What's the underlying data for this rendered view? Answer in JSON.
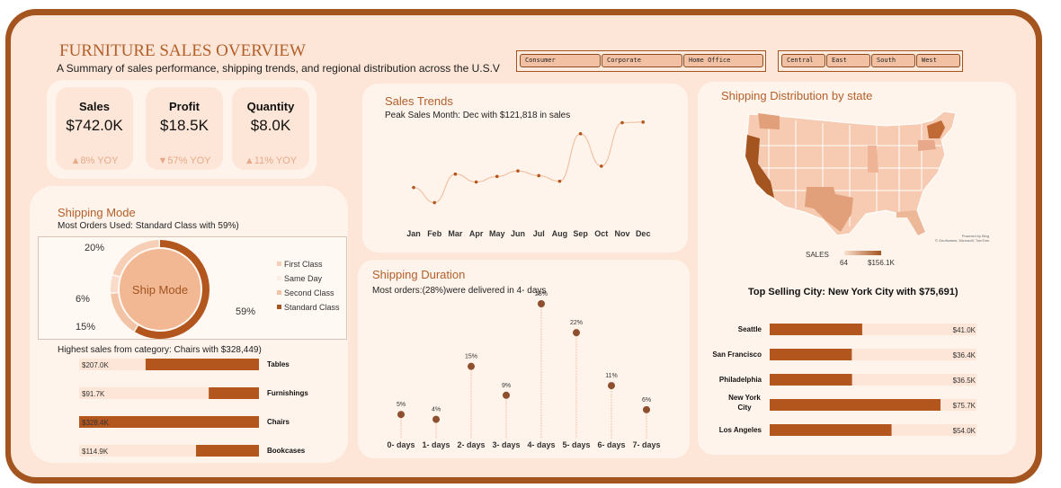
{
  "header": {
    "title": "FURNITURE SALES OVERVIEW",
    "subtitle": "A Summary of sales performance, shipping trends, and regional distribution across the U.S.V"
  },
  "slicers": {
    "segment": [
      "Consumer",
      "Corporate",
      "Home Office"
    ],
    "region": [
      "Central",
      "East",
      "South",
      "West"
    ]
  },
  "kpis": [
    {
      "label": "Sales",
      "value": "$742.0K",
      "yoy": "▲8% YOY"
    },
    {
      "label": "Profit",
      "value": "$18.5K",
      "yoy": "▼57% YOY"
    },
    {
      "label": "Quantity",
      "value": "$8.0K",
      "yoy": "▲11% YOY"
    }
  ],
  "shipping_mode": {
    "title": "Shipping Mode",
    "subtitle": "Most Orders Used: Standard Class with 59%)",
    "center_label": "Ship Mode",
    "slice_labels": [
      "20%",
      "6%",
      "15%",
      "59%"
    ],
    "legend": [
      "First Class",
      "Same Day",
      "Second Class",
      "Standard Class"
    ]
  },
  "category": {
    "title": "Highest sales from category: Chairs with $328,449)"
  },
  "sales_trends": {
    "title": "Sales Trends",
    "subtitle": "Peak Sales Month: Dec with $121,818 in sales"
  },
  "shipping_duration": {
    "title": "Shipping Duration",
    "subtitle": "Most orders:(28%)were delivered in 4- days"
  },
  "map": {
    "title": "Shipping Distribution by state",
    "legend_title": "SALES",
    "legend_min": "64",
    "legend_max": "$156.1K",
    "credit": "Powered by Bing",
    "credit2": "© GeoNames, Microsoft, TomTom"
  },
  "cities": {
    "title": "Top Selling City: New York City with $75,691)"
  },
  "colors": {
    "accent": "#a4541f",
    "title": "#b35f2a",
    "panel": "#fff4ec",
    "background": "#fde6d7"
  },
  "chart_data": [
    {
      "type": "pie",
      "id": "ship_mode",
      "categories": [
        "Standard Class",
        "Second Class",
        "Same Day",
        "First Class"
      ],
      "values": [
        59,
        15,
        6,
        20
      ],
      "colors": [
        "#b3561e",
        "#f3c3a5",
        "#fbdccb",
        "#f6cfb6"
      ]
    },
    {
      "type": "bar",
      "id": "category_sales",
      "orientation": "horizontal",
      "categories": [
        "Tables",
        "Furnishings",
        "Chairs",
        "Bookcases"
      ],
      "values": [
        207.0,
        91.7,
        328.4,
        114.9
      ],
      "labels": [
        "$207.0K",
        "$91.7K",
        "$328.4K",
        "$114.9K"
      ],
      "xlim": [
        0,
        328.4
      ]
    },
    {
      "type": "line",
      "id": "sales_trends",
      "categories": [
        "Jan",
        "Feb",
        "Mar",
        "Apr",
        "May",
        "Jun",
        "Jul",
        "Aug",
        "Sep",
        "Oct",
        "Nov",
        "Dec"
      ],
      "values": [
        39,
        20,
        56,
        46,
        53,
        60,
        54,
        47,
        107,
        66,
        121,
        121.8
      ]
    },
    {
      "type": "scatter",
      "id": "shipping_duration",
      "categories": [
        "0- days",
        "1- days",
        "2- days",
        "3- days",
        "4- days",
        "5- days",
        "6- days",
        "7- days"
      ],
      "values": [
        5,
        4,
        15,
        9,
        28,
        22,
        11,
        6
      ],
      "labels": [
        "5%",
        "4%",
        "15%",
        "9%",
        "28%",
        "22%",
        "11%",
        "6%"
      ]
    },
    {
      "type": "bar",
      "id": "top_cities",
      "orientation": "horizontal",
      "categories": [
        "Seattle",
        "San Francisco",
        "Philadelphia",
        "New York City",
        "Los Angeles"
      ],
      "values": [
        41.0,
        36.4,
        36.5,
        75.7,
        54.0
      ],
      "labels": [
        "$41.0K",
        "$36.4K",
        "$36.5K",
        "$75.7K",
        "$54.0K"
      ],
      "xlim": [
        0,
        75.7
      ]
    }
  ]
}
